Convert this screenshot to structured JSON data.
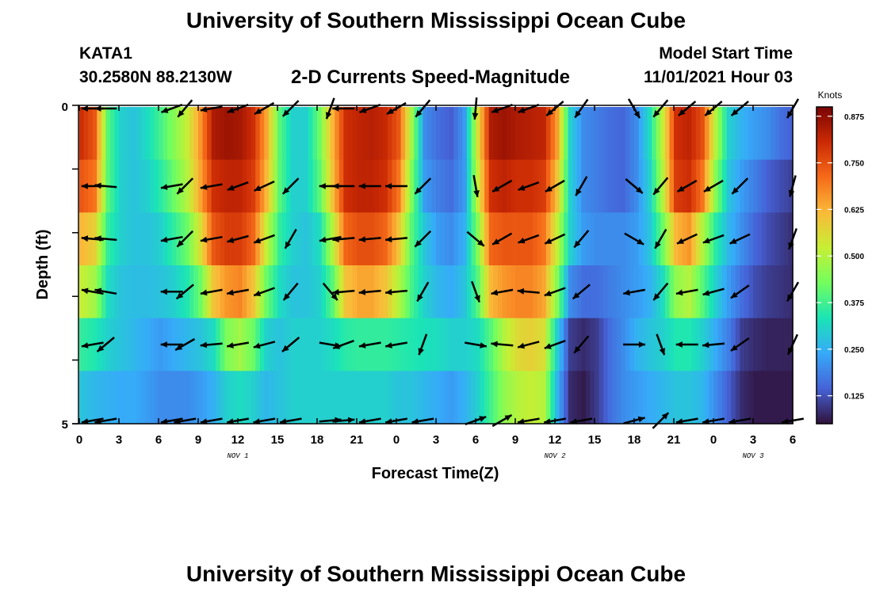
{
  "header": {
    "title": "University of Southern Mississippi Ocean Cube",
    "station": "KATA1",
    "coordinates": "30.2580N  88.2130W",
    "subtitle": "2-D Currents Speed-Magnitude",
    "model_start_label": "Model Start Time",
    "model_start_value": "11/01/2021 Hour 03"
  },
  "footer": {
    "title": "University of Southern Mississippi Ocean Cube"
  },
  "chart_data": {
    "type": "heatmap",
    "xlabel": "Forecast Time(Z)",
    "ylabel": "Depth (ft)",
    "x_ticks": [
      "0",
      "3",
      "6",
      "9",
      "12",
      "15",
      "18",
      "21",
      "0",
      "3",
      "6",
      "9",
      "12",
      "15",
      "18",
      "21",
      "0",
      "3",
      "6"
    ],
    "y_ticks": [
      "0",
      "5"
    ],
    "ylim": [
      0,
      5
    ],
    "date_labels": [
      {
        "label": "NOV 1",
        "at_hour": 12
      },
      {
        "label": "NOV 2",
        "at_hour": 36
      },
      {
        "label": "NOV 3",
        "at_hour": 51
      }
    ],
    "colorbar": {
      "label": "Knots",
      "ticks": [
        "0.125",
        "0.250",
        "0.375",
        "0.500",
        "0.625",
        "0.750",
        "0.875"
      ],
      "colors": [
        "#30123b",
        "#4662d7",
        "#36aaf9",
        "#1ae4b6",
        "#72fe5e",
        "#c7ef34",
        "#faba39",
        "#f66b19",
        "#cb2a04",
        "#7a0403"
      ]
    },
    "hours": [
      0,
      1,
      2,
      3,
      4,
      5,
      6,
      7,
      8,
      9,
      10,
      11,
      12,
      13,
      14,
      15,
      16,
      17,
      18,
      19,
      20,
      21,
      22,
      23,
      24,
      25,
      26,
      27,
      28,
      29,
      30,
      31,
      32,
      33,
      34,
      35,
      36,
      37,
      38,
      39,
      40,
      41,
      42,
      43,
      44,
      45,
      46,
      47,
      48,
      49,
      50,
      51,
      52,
      53,
      54
    ],
    "depth_layers": [
      {
        "depth": 0,
        "speed": [
          0.8,
          0.74,
          0.4,
          0.3,
          0.28,
          0.32,
          0.38,
          0.45,
          0.52,
          0.66,
          0.84,
          0.86,
          0.85,
          0.8,
          0.64,
          0.4,
          0.3,
          0.3,
          0.42,
          0.62,
          0.8,
          0.82,
          0.83,
          0.81,
          0.74,
          0.48,
          0.2,
          0.16,
          0.14,
          0.22,
          0.55,
          0.84,
          0.86,
          0.84,
          0.83,
          0.82,
          0.65,
          0.3,
          0.2,
          0.18,
          0.16,
          0.15,
          0.2,
          0.32,
          0.52,
          0.8,
          0.82,
          0.75,
          0.5,
          0.3,
          0.25,
          0.22,
          0.2,
          0.16,
          0.14
        ]
      },
      {
        "depth": 1,
        "speed": [
          0.74,
          0.7,
          0.4,
          0.3,
          0.28,
          0.3,
          0.35,
          0.42,
          0.5,
          0.64,
          0.8,
          0.82,
          0.82,
          0.78,
          0.62,
          0.4,
          0.3,
          0.3,
          0.4,
          0.6,
          0.8,
          0.82,
          0.82,
          0.8,
          0.7,
          0.44,
          0.22,
          0.18,
          0.16,
          0.22,
          0.52,
          0.8,
          0.82,
          0.8,
          0.8,
          0.78,
          0.6,
          0.3,
          0.2,
          0.18,
          0.16,
          0.15,
          0.2,
          0.3,
          0.5,
          0.78,
          0.8,
          0.7,
          0.45,
          0.28,
          0.22,
          0.18,
          0.14,
          0.12,
          0.1
        ]
      },
      {
        "depth": 2,
        "speed": [
          0.62,
          0.58,
          0.36,
          0.3,
          0.28,
          0.28,
          0.3,
          0.36,
          0.42,
          0.55,
          0.74,
          0.78,
          0.78,
          0.72,
          0.52,
          0.36,
          0.3,
          0.28,
          0.32,
          0.5,
          0.72,
          0.75,
          0.75,
          0.72,
          0.6,
          0.4,
          0.28,
          0.22,
          0.2,
          0.25,
          0.45,
          0.72,
          0.74,
          0.74,
          0.74,
          0.7,
          0.52,
          0.3,
          0.22,
          0.2,
          0.2,
          0.2,
          0.22,
          0.28,
          0.42,
          0.62,
          0.66,
          0.5,
          0.35,
          0.26,
          0.2,
          0.15,
          0.12,
          0.1,
          0.08
        ]
      },
      {
        "depth": 3,
        "speed": [
          0.52,
          0.48,
          0.32,
          0.28,
          0.27,
          0.27,
          0.28,
          0.3,
          0.34,
          0.42,
          0.6,
          0.66,
          0.68,
          0.6,
          0.42,
          0.32,
          0.28,
          0.28,
          0.3,
          0.4,
          0.6,
          0.64,
          0.64,
          0.6,
          0.5,
          0.38,
          0.3,
          0.26,
          0.24,
          0.28,
          0.4,
          0.62,
          0.66,
          0.68,
          0.68,
          0.64,
          0.45,
          0.2,
          0.16,
          0.16,
          0.18,
          0.2,
          0.22,
          0.25,
          0.32,
          0.46,
          0.5,
          0.4,
          0.3,
          0.22,
          0.16,
          0.12,
          0.1,
          0.09,
          0.08
        ]
      },
      {
        "depth": 4,
        "speed": [
          0.36,
          0.34,
          0.3,
          0.28,
          0.26,
          0.24,
          0.22,
          0.24,
          0.26,
          0.28,
          0.32,
          0.44,
          0.48,
          0.42,
          0.3,
          0.28,
          0.3,
          0.3,
          0.3,
          0.32,
          0.35,
          0.36,
          0.36,
          0.36,
          0.35,
          0.34,
          0.33,
          0.32,
          0.3,
          0.3,
          0.32,
          0.4,
          0.5,
          0.56,
          0.58,
          0.55,
          0.3,
          0.1,
          0.08,
          0.1,
          0.16,
          0.2,
          0.25,
          0.28,
          0.3,
          0.34,
          0.34,
          0.3,
          0.24,
          0.18,
          0.1,
          0.08,
          0.07,
          0.07,
          0.07
        ]
      },
      {
        "depth": 5,
        "speed": [
          0.28,
          0.26,
          0.25,
          0.24,
          0.24,
          0.22,
          0.2,
          0.2,
          0.2,
          0.22,
          0.25,
          0.3,
          0.32,
          0.3,
          0.26,
          0.28,
          0.3,
          0.3,
          0.3,
          0.3,
          0.3,
          0.3,
          0.3,
          0.3,
          0.28,
          0.28,
          0.26,
          0.24,
          0.22,
          0.25,
          0.3,
          0.38,
          0.46,
          0.5,
          0.52,
          0.5,
          0.26,
          0.08,
          0.06,
          0.1,
          0.16,
          0.2,
          0.22,
          0.24,
          0.26,
          0.28,
          0.28,
          0.26,
          0.2,
          0.14,
          0.08,
          0.06,
          0.06,
          0.06,
          0.06
        ]
      }
    ],
    "vector_hours": [
      1,
      2,
      7,
      8,
      10,
      12,
      14,
      16,
      19,
      20,
      22,
      24,
      26,
      30,
      32,
      34,
      36,
      38,
      42,
      44,
      46,
      48,
      50,
      54
    ],
    "vector_directions_deg": [
      [
        270,
        270,
        250,
        220,
        260,
        250,
        240,
        225,
        200,
        270,
        250,
        240,
        220,
        185,
        250,
        250,
        230,
        215,
        150,
        220,
        230,
        230,
        230,
        210
      ],
      [
        270,
        275,
        260,
        225,
        260,
        250,
        245,
        225,
        270,
        270,
        270,
        270,
        225,
        170,
        240,
        250,
        240,
        210,
        130,
        220,
        240,
        240,
        225,
        195
      ],
      [
        275,
        275,
        260,
        225,
        260,
        255,
        250,
        210,
        260,
        265,
        265,
        265,
        225,
        130,
        240,
        250,
        245,
        220,
        120,
        210,
        245,
        250,
        245,
        200
      ],
      [
        280,
        280,
        270,
        230,
        260,
        260,
        250,
        220,
        140,
        265,
        265,
        265,
        210,
        160,
        260,
        275,
        250,
        230,
        260,
        220,
        260,
        255,
        235,
        210
      ],
      [
        260,
        230,
        270,
        240,
        265,
        260,
        255,
        230,
        100,
        250,
        260,
        260,
        200,
        100,
        275,
        255,
        250,
        220,
        90,
        160,
        270,
        265,
        235,
        205
      ],
      [
        260,
        260,
        260,
        260,
        260,
        260,
        260,
        260,
        85,
        85,
        260,
        260,
        260,
        70,
        60,
        260,
        260,
        260,
        75,
        45,
        260,
        260,
        260,
        260
      ]
    ]
  }
}
